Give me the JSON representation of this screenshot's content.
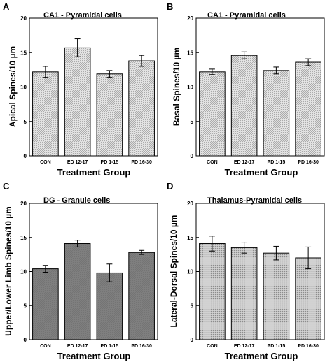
{
  "chart_data": [
    {
      "type": "bar",
      "panel_letter": "A",
      "title": "CA1 - Pyramidal cells",
      "xlabel": "Treatment Group",
      "ylabel": "Apical Spines/10 µm",
      "categories": [
        "CON",
        "ED 12-17",
        "PD 1-15",
        "PD 16-30"
      ],
      "values": [
        12.2,
        15.7,
        11.9,
        13.8
      ],
      "errors": [
        0.8,
        1.3,
        0.5,
        0.8
      ],
      "ylim": [
        0,
        20
      ],
      "yticks": [
        0,
        5,
        10,
        15,
        20
      ],
      "fill": "hatch-light",
      "bar_color": "#d6d6d6"
    },
    {
      "type": "bar",
      "panel_letter": "B",
      "title": "CA1 - Pyramidal cells",
      "xlabel": "Treatment Group",
      "ylabel": "Basal Spines/10 µm",
      "categories": [
        "CON",
        "ED 12-17",
        "PD 1-15",
        "PD 16-30"
      ],
      "values": [
        12.2,
        14.6,
        12.4,
        13.6
      ],
      "errors": [
        0.4,
        0.5,
        0.5,
        0.5
      ],
      "ylim": [
        0,
        20
      ],
      "yticks": [
        0,
        5,
        10,
        15,
        20
      ],
      "fill": "hatch-light",
      "bar_color": "#d6d6d6"
    },
    {
      "type": "bar",
      "panel_letter": "C",
      "title": "DG - Granule cells",
      "xlabel": "Treatment Group",
      "ylabel": "Upper/Lower Limb Spines/10 µm",
      "categories": [
        "CON",
        "ED 12-17",
        "PD 1-15",
        "PD 16-30"
      ],
      "values": [
        10.4,
        14.1,
        9.8,
        12.8
      ],
      "errors": [
        0.5,
        0.5,
        1.3,
        0.3
      ],
      "ylim": [
        0,
        20
      ],
      "yticks": [
        0,
        5,
        10,
        15,
        20
      ],
      "fill": "solid-dark",
      "bar_color": "#7f7f7f"
    },
    {
      "type": "bar",
      "panel_letter": "D",
      "title": "Thalamus-Pyramidal cells",
      "xlabel": "Treatment Group",
      "ylabel": "Lateral-Dorsal Spines/10 µm",
      "categories": [
        "CON",
        "ED 12-17",
        "PD 1-15",
        "PD 16-30"
      ],
      "values": [
        14.1,
        13.5,
        12.7,
        12.0
      ],
      "errors": [
        1.1,
        0.8,
        1.0,
        1.6
      ],
      "ylim": [
        0,
        20
      ],
      "yticks": [
        0,
        5,
        10,
        15,
        20
      ],
      "fill": "dotted",
      "bar_color": "#bcbcbc"
    }
  ]
}
